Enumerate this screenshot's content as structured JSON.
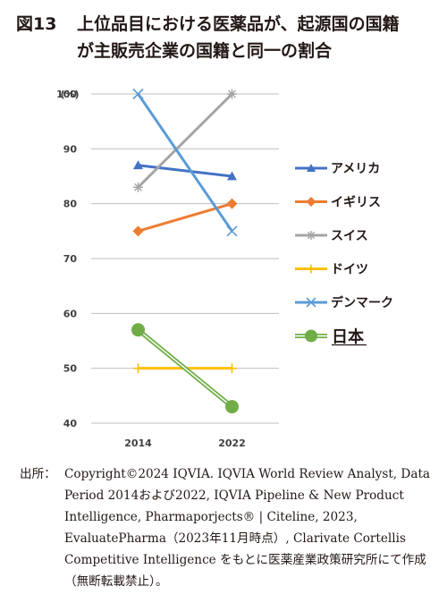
{
  "title": {
    "number": "図13",
    "line1": "上位品目における医薬品が、起源国の国籍",
    "line2": "が主販売企業の国籍と同一の割合"
  },
  "source": {
    "label": "出所：",
    "text": "Copyright©2024 IQVIA. IQVIA World Review Analyst, Data Period 2014および2022, IQVIA Pipeline & New Product Intelligence, Pharmaporjects® | Citeline, 2023, EvaluatePharma（2023年11月時点）, Clarivate Cortellis Competitive Intelligence をもとに医薬産業政策研究所にて作成（無断転載禁止）。"
  },
  "chart_data": {
    "type": "line",
    "ylabel": "(%)",
    "ylim": [
      40,
      100
    ],
    "yticks": [
      40,
      50,
      60,
      70,
      80,
      90,
      100
    ],
    "categories": [
      "2014",
      "2022"
    ],
    "grid": true,
    "legend_position": "right",
    "series": [
      {
        "name": "アメリカ",
        "values": [
          87,
          85
        ],
        "color": "#4472C4",
        "marker": "triangle"
      },
      {
        "name": "イギリス",
        "values": [
          75,
          80
        ],
        "color": "#ED7D31",
        "marker": "diamond"
      },
      {
        "name": "スイス",
        "values": [
          83,
          100
        ],
        "color": "#A5A5A5",
        "marker": "star"
      },
      {
        "name": "ドイツ",
        "values": [
          50,
          50
        ],
        "color": "#FFC000",
        "marker": "plus"
      },
      {
        "name": "デンマーク",
        "values": [
          100,
          75
        ],
        "color": "#5B9BD5",
        "marker": "x"
      },
      {
        "name": "日本",
        "values": [
          57,
          43
        ],
        "color": "#70AD47",
        "marker": "circle",
        "double_line": true
      }
    ]
  }
}
